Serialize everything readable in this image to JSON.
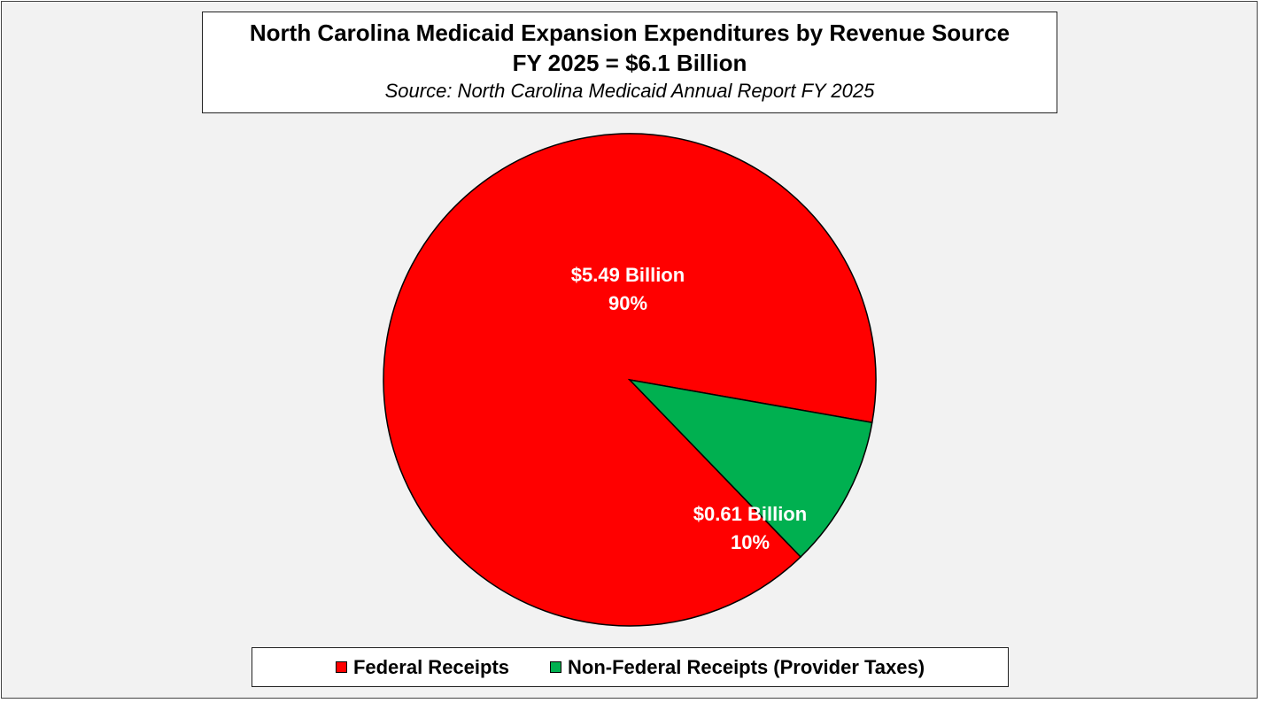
{
  "chart_data": {
    "type": "pie",
    "title": "North Carolina Medicaid Expansion Expenditures by Revenue Source",
    "subtitle": "FY 2025 = $6.1 Billion",
    "source": "Source: North Carolina Medicaid Annual Report FY 2025",
    "total_billion": 6.1,
    "legend_position": "bottom",
    "slices": [
      {
        "name": "Federal Receipts",
        "value_billion": 5.49,
        "percent": 90,
        "value_label": "$5.49 Billion",
        "percent_label": "90%",
        "color": "#ff0000"
      },
      {
        "name": "Non-Federal Receipts (Provider Taxes)",
        "value_billion": 0.61,
        "percent": 10,
        "value_label": "$0.61 Billion",
        "percent_label": "10%",
        "color": "#00b050"
      }
    ]
  },
  "colors": {
    "background": "#f2f2f2",
    "label_text": "#ffffff",
    "slice_border": "#000000"
  }
}
